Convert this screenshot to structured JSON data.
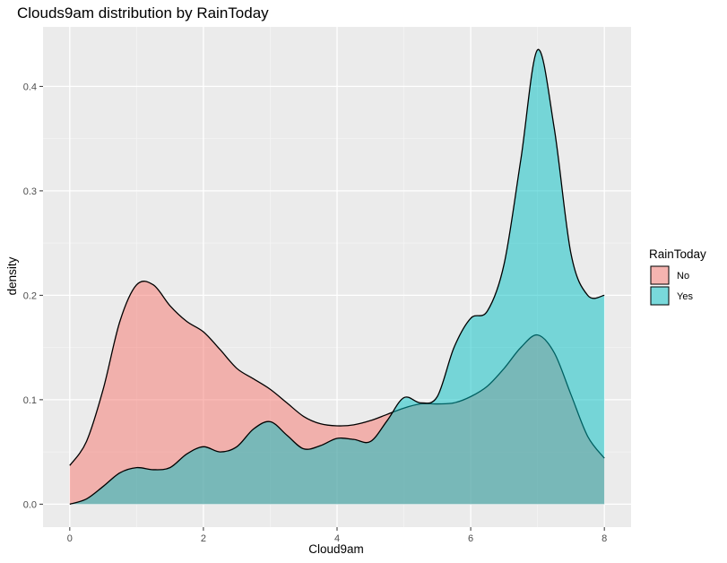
{
  "chart_data": {
    "type": "area",
    "title": "Clouds9am distribution by RainToday",
    "xlabel": "Cloud9am",
    "ylabel": "density",
    "xlim": [
      -0.4,
      8.4
    ],
    "ylim": [
      -0.022,
      0.457
    ],
    "xticks": [
      0,
      2,
      4,
      6,
      8
    ],
    "yticks": [
      0.0,
      0.1,
      0.2,
      0.3,
      0.4
    ],
    "xtick_labels": [
      "0",
      "2",
      "4",
      "6",
      "8"
    ],
    "ytick_labels": [
      "0.0",
      "0.1",
      "0.2",
      "0.3",
      "0.4"
    ],
    "grid": true,
    "legend": {
      "title": "RainToday",
      "position": "right"
    },
    "x": [
      0,
      0.25,
      0.5,
      0.75,
      1.0,
      1.25,
      1.5,
      1.75,
      2.0,
      2.25,
      2.5,
      2.75,
      3.0,
      3.25,
      3.5,
      3.75,
      4.0,
      4.25,
      4.5,
      4.75,
      5.0,
      5.25,
      5.5,
      5.75,
      6.0,
      6.25,
      6.5,
      6.75,
      7.0,
      7.25,
      7.5,
      7.75,
      8.0
    ],
    "series": [
      {
        "name": "No",
        "color": "#F8766D",
        "values": [
          0.037,
          0.06,
          0.11,
          0.175,
          0.21,
          0.21,
          0.19,
          0.175,
          0.165,
          0.148,
          0.13,
          0.12,
          0.11,
          0.097,
          0.084,
          0.077,
          0.075,
          0.076,
          0.08,
          0.086,
          0.092,
          0.096,
          0.096,
          0.097,
          0.103,
          0.113,
          0.13,
          0.15,
          0.162,
          0.145,
          0.105,
          0.065,
          0.044
        ]
      },
      {
        "name": "Yes",
        "color": "#00BFC4",
        "values": [
          0.0,
          0.005,
          0.017,
          0.03,
          0.035,
          0.033,
          0.035,
          0.048,
          0.055,
          0.05,
          0.055,
          0.072,
          0.079,
          0.066,
          0.053,
          0.056,
          0.063,
          0.062,
          0.06,
          0.08,
          0.102,
          0.097,
          0.103,
          0.15,
          0.178,
          0.185,
          0.23,
          0.33,
          0.435,
          0.36,
          0.24,
          0.2,
          0.2
        ]
      }
    ]
  }
}
